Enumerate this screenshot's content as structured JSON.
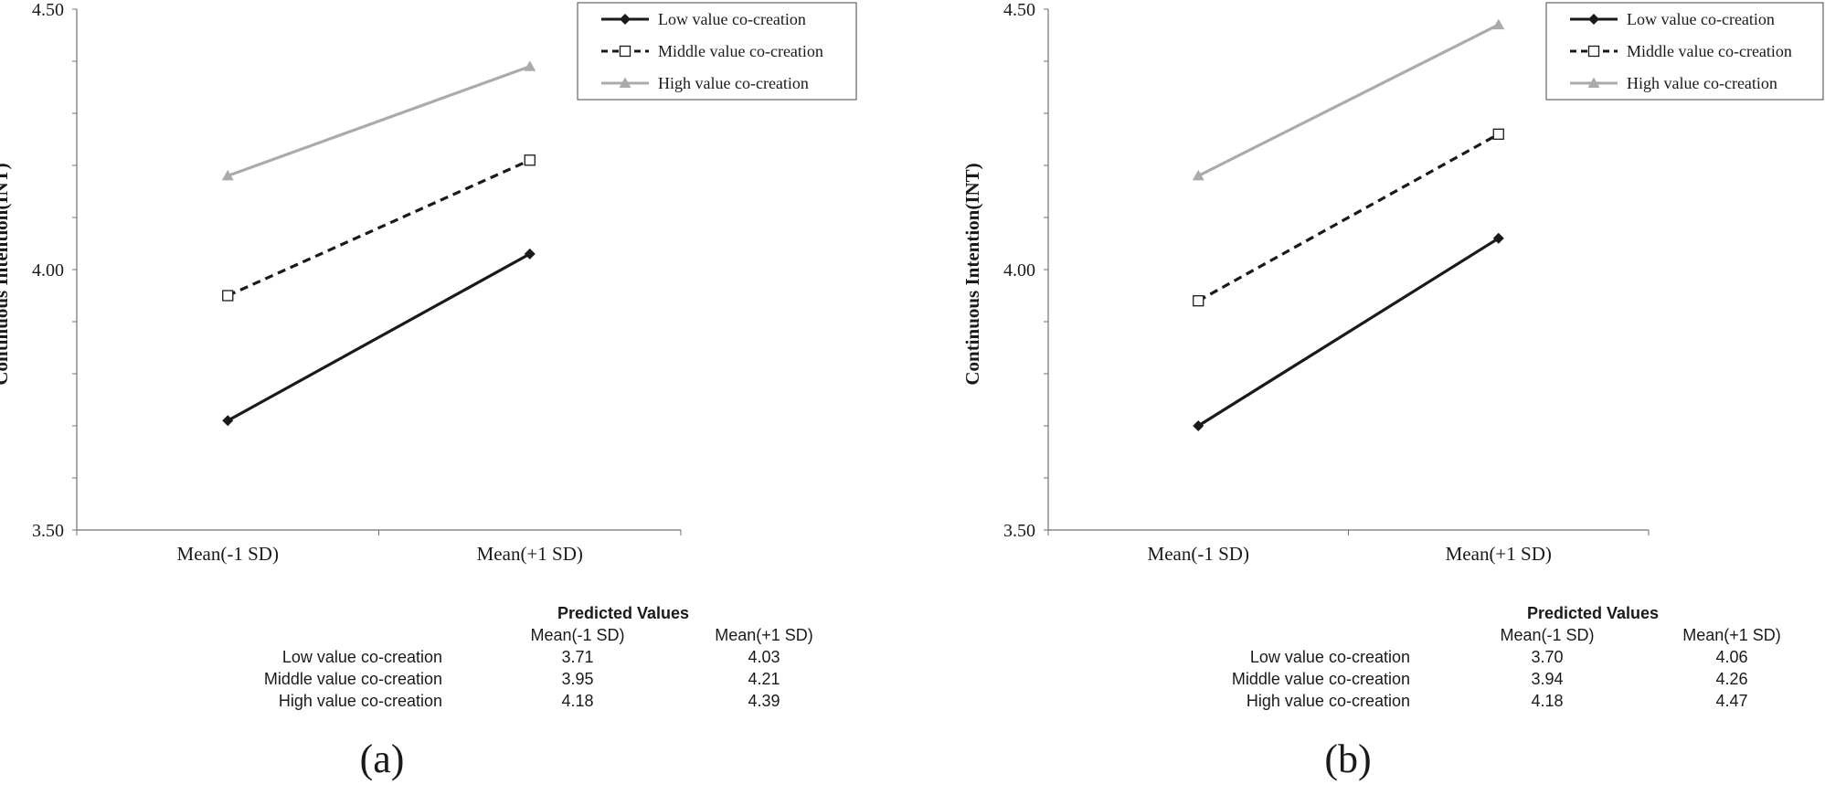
{
  "colors": {
    "low": "#1a1a1a",
    "middle": "#1a1a1a",
    "high": "#ababab",
    "axis": "#707070",
    "text": "#1a1a1a"
  },
  "chart_data": [
    {
      "type": "line",
      "panel_label": "(a)",
      "ylabel": "Continuous Intention(INT)",
      "xlabel": "",
      "ylim": [
        3.5,
        4.5
      ],
      "y_ticks": [
        3.5,
        4.0,
        4.5
      ],
      "y_tick_labels": [
        "3.50",
        "4.00",
        "4.50"
      ],
      "categories": [
        "Mean(-1 SD)",
        "Mean(+1 SD)"
      ],
      "legend_position": "top-right",
      "series": [
        {
          "name": "Low value co-creation",
          "key": "low",
          "marker": "diamond",
          "style": "solid",
          "values": [
            3.71,
            4.03
          ]
        },
        {
          "name": "Middle value co-creation",
          "key": "middle",
          "marker": "square-open",
          "style": "dashed",
          "values": [
            3.95,
            4.21
          ]
        },
        {
          "name": "High value co-creation",
          "key": "high",
          "marker": "triangle",
          "style": "solid",
          "values": [
            4.18,
            4.39
          ]
        }
      ],
      "table": {
        "title": "Predicted Values",
        "columns": [
          "Mean(-1 SD)",
          "Mean(+1 SD)"
        ],
        "rows": [
          {
            "label": "Low value co-creation",
            "values": [
              "3.71",
              "4.03"
            ]
          },
          {
            "label": "Middle value co-creation",
            "values": [
              "3.95",
              "4.21"
            ]
          },
          {
            "label": "High value co-creation",
            "values": [
              "4.18",
              "4.39"
            ]
          }
        ]
      }
    },
    {
      "type": "line",
      "panel_label": "(b)",
      "ylabel": "Continuous Intention(INT)",
      "xlabel": "",
      "ylim": [
        3.5,
        4.5
      ],
      "y_ticks": [
        3.5,
        4.0,
        4.5
      ],
      "y_tick_labels": [
        "3.50",
        "4.00",
        "4.50"
      ],
      "categories": [
        "Mean(-1 SD)",
        "Mean(+1 SD)"
      ],
      "legend_position": "top-right",
      "series": [
        {
          "name": "Low value co-creation",
          "key": "low",
          "marker": "diamond",
          "style": "solid",
          "values": [
            3.7,
            4.06
          ]
        },
        {
          "name": "Middle value co-creation",
          "key": "middle",
          "marker": "square-open",
          "style": "dashed",
          "values": [
            3.94,
            4.26
          ]
        },
        {
          "name": "High value co-creation",
          "key": "high",
          "marker": "triangle",
          "style": "solid",
          "values": [
            4.18,
            4.47
          ]
        }
      ],
      "table": {
        "title": "Predicted Values",
        "columns": [
          "Mean(-1 SD)",
          "Mean(+1 SD)"
        ],
        "rows": [
          {
            "label": "Low value co-creation",
            "values": [
              "3.70",
              "4.06"
            ]
          },
          {
            "label": "Middle value co-creation",
            "values": [
              "3.94",
              "4.26"
            ]
          },
          {
            "label": "High value co-creation",
            "values": [
              "4.18",
              "4.47"
            ]
          }
        ]
      }
    }
  ]
}
